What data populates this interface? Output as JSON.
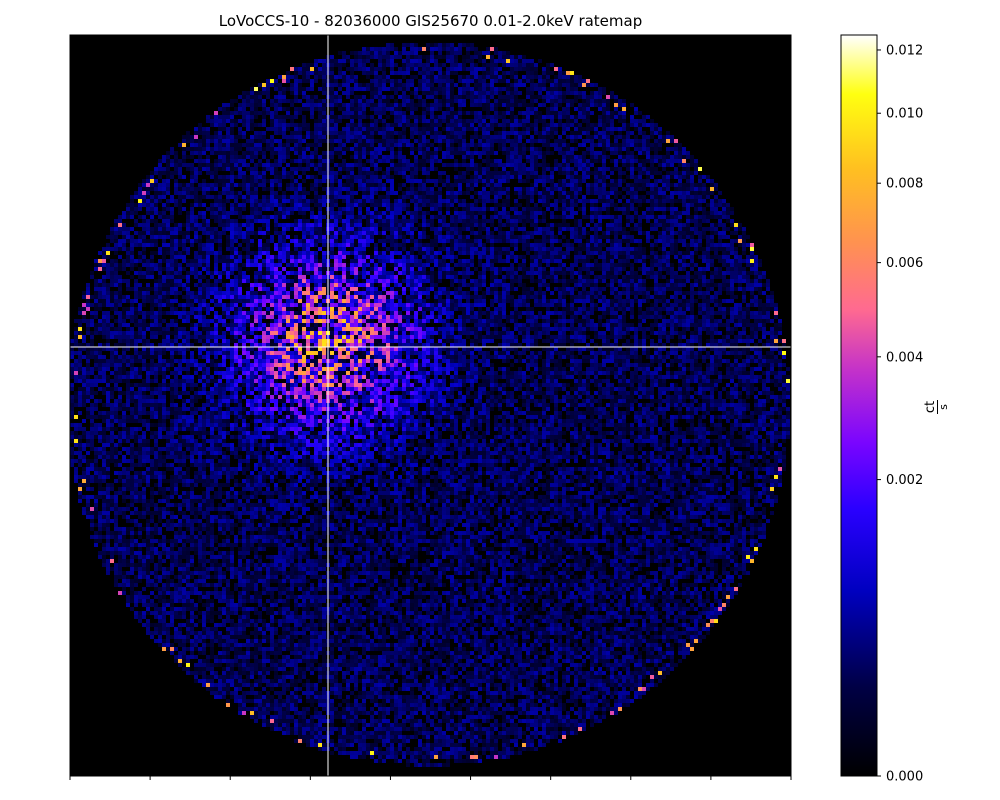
{
  "chart_data": {
    "type": "heatmap",
    "title": "LoVoCCS-10 - 82036000 GIS25670 0.01-2.0keV ratemap",
    "xlabel": "",
    "ylabel": "",
    "colorbar": {
      "label_num": "ct",
      "label_den": "s",
      "scale": "power-law",
      "colormap": "gnuplot2",
      "range": [
        0.0,
        0.0125
      ],
      "ticks": [
        {
          "value": 0.0,
          "label": "0.000"
        },
        {
          "value": 0.002,
          "label": "0.002"
        },
        {
          "value": 0.004,
          "label": "0.004"
        },
        {
          "value": 0.006,
          "label": "0.006"
        },
        {
          "value": 0.008,
          "label": "0.008"
        },
        {
          "value": 0.01,
          "label": "0.010"
        },
        {
          "value": 0.012,
          "label": "0.012"
        }
      ]
    },
    "crosshair": {
      "color": "#ffffff"
    },
    "x_tick_count": 10,
    "colors": {
      "background": "#000000",
      "axis": "#000000"
    }
  }
}
